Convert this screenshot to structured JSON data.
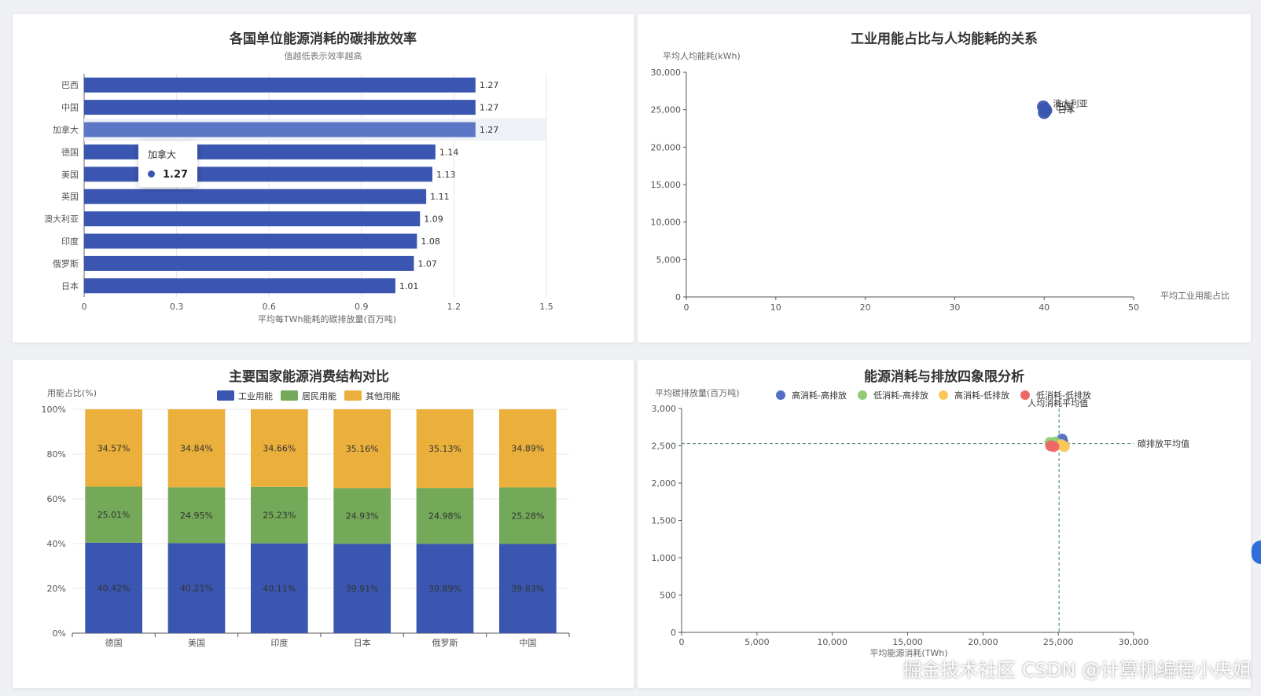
{
  "colors": {
    "bar": "#3a56b0",
    "bar_highlight": "#5b77c6",
    "industrial": "#3a56b0",
    "residential": "#73a958",
    "other": "#ebb03c",
    "q_hh": "#5470c6",
    "q_lh": "#91cc75",
    "q_hl": "#fac858",
    "q_ll": "#ee6666",
    "ref_line": "#3a7f6f"
  },
  "chart_data": [
    {
      "type": "bar",
      "orientation": "horizontal",
      "title": "各国单位能源消耗的碳排放效率",
      "subtitle": "值越低表示效率越高",
      "xlabel": "平均每TWh能耗的碳排放量(百万吨)",
      "categories": [
        "巴西",
        "中国",
        "加拿大",
        "德国",
        "美国",
        "英国",
        "澳大利亚",
        "印度",
        "俄罗斯",
        "日本"
      ],
      "values": [
        1.27,
        1.27,
        1.27,
        1.14,
        1.13,
        1.11,
        1.09,
        1.08,
        1.07,
        1.01
      ],
      "xlim": [
        0,
        1.5
      ],
      "xticks": [
        "0",
        "0.3",
        "0.6",
        "0.9",
        "1.2",
        "1.5"
      ],
      "highlighted": "加拿大",
      "tooltip": {
        "name": "加拿大",
        "value": "1.27"
      }
    },
    {
      "type": "scatter",
      "title": "工业用能占比与人均能耗的关系",
      "ylabel": "平均人均能耗(kWh)",
      "xlabel": "平均工业用能占比",
      "xlim": [
        0,
        50
      ],
      "ylim": [
        0,
        30000
      ],
      "xticks": [
        "0",
        "10",
        "20",
        "30",
        "40",
        "50"
      ],
      "yticks": [
        "0",
        "5,000",
        "10,000",
        "15,000",
        "20,000",
        "25,000",
        "30,000"
      ],
      "points": [
        {
          "x": 39.9,
          "y": 25400
        },
        {
          "x": 40.1,
          "y": 25100
        },
        {
          "x": 40.0,
          "y": 24600
        },
        {
          "x": 40.2,
          "y": 24900
        }
      ],
      "point_labels": [
        "澳大利亚",
        "巴西",
        "日本"
      ]
    },
    {
      "type": "bar",
      "stacked": true,
      "title": "主要国家能源消费结构对比",
      "ylabel": "用能占比(%)",
      "categories": [
        "德国",
        "美国",
        "印度",
        "日本",
        "俄罗斯",
        "中国"
      ],
      "yticks": [
        "0%",
        "20%",
        "40%",
        "60%",
        "80%",
        "100%"
      ],
      "series": [
        {
          "name": "工业用能",
          "values": [
            40.42,
            40.21,
            40.11,
            39.91,
            39.89,
            39.83
          ],
          "labels": [
            "40.42%",
            "40.21%",
            "40.11%",
            "39.91%",
            "39.89%",
            "39.83%"
          ]
        },
        {
          "name": "居民用能",
          "values": [
            25.01,
            24.95,
            25.23,
            24.93,
            24.98,
            25.28
          ],
          "labels": [
            "25.01%",
            "24.95%",
            "25.23%",
            "24.93%",
            "24.98%",
            "25.28%"
          ]
        },
        {
          "name": "其他用能",
          "values": [
            34.57,
            34.84,
            34.66,
            35.16,
            35.13,
            34.89
          ],
          "labels": [
            "34.57%",
            "34.84%",
            "34.66%",
            "35.16%",
            "35.13%",
            "34.89%"
          ]
        }
      ]
    },
    {
      "type": "scatter",
      "title": "能源消耗与排放四象限分析",
      "ylabel": "平均碳排放量(百万吨)",
      "xlabel": "平均能源消耗(TWh)",
      "xlim": [
        0,
        30000
      ],
      "ylim": [
        0,
        3000
      ],
      "xticks": [
        "0",
        "5,000",
        "10,000",
        "15,000",
        "20,000",
        "25,000",
        "30,000"
      ],
      "yticks": [
        "0",
        "500",
        "1,000",
        "1,500",
        "2,000",
        "2,500",
        "3,000"
      ],
      "legend": [
        "高消耗-高排放",
        "低消耗-高排放",
        "高消耗-低排放",
        "低消耗-低排放"
      ],
      "series": [
        {
          "name": "高消耗-高排放",
          "points": [
            [
              25250,
              2590
            ],
            [
              25300,
              2545
            ]
          ]
        },
        {
          "name": "低消耗-高排放",
          "points": [
            [
              24450,
              2545
            ],
            [
              24800,
              2550
            ]
          ]
        },
        {
          "name": "高消耗-低排放",
          "points": [
            [
              25400,
              2490
            ],
            [
              25200,
              2515
            ]
          ]
        },
        {
          "name": "低消耗-低排放",
          "points": [
            [
              24500,
              2500
            ],
            [
              24700,
              2490
            ]
          ]
        }
      ],
      "markline_x": {
        "value": 25050,
        "label": "人均消耗平均值"
      },
      "markline_y": {
        "value": 2530,
        "label": "碳排放平均值"
      }
    }
  ],
  "watermark": "CSDN @计算机编程小央姐",
  "watermark2": "掘金技术社区"
}
